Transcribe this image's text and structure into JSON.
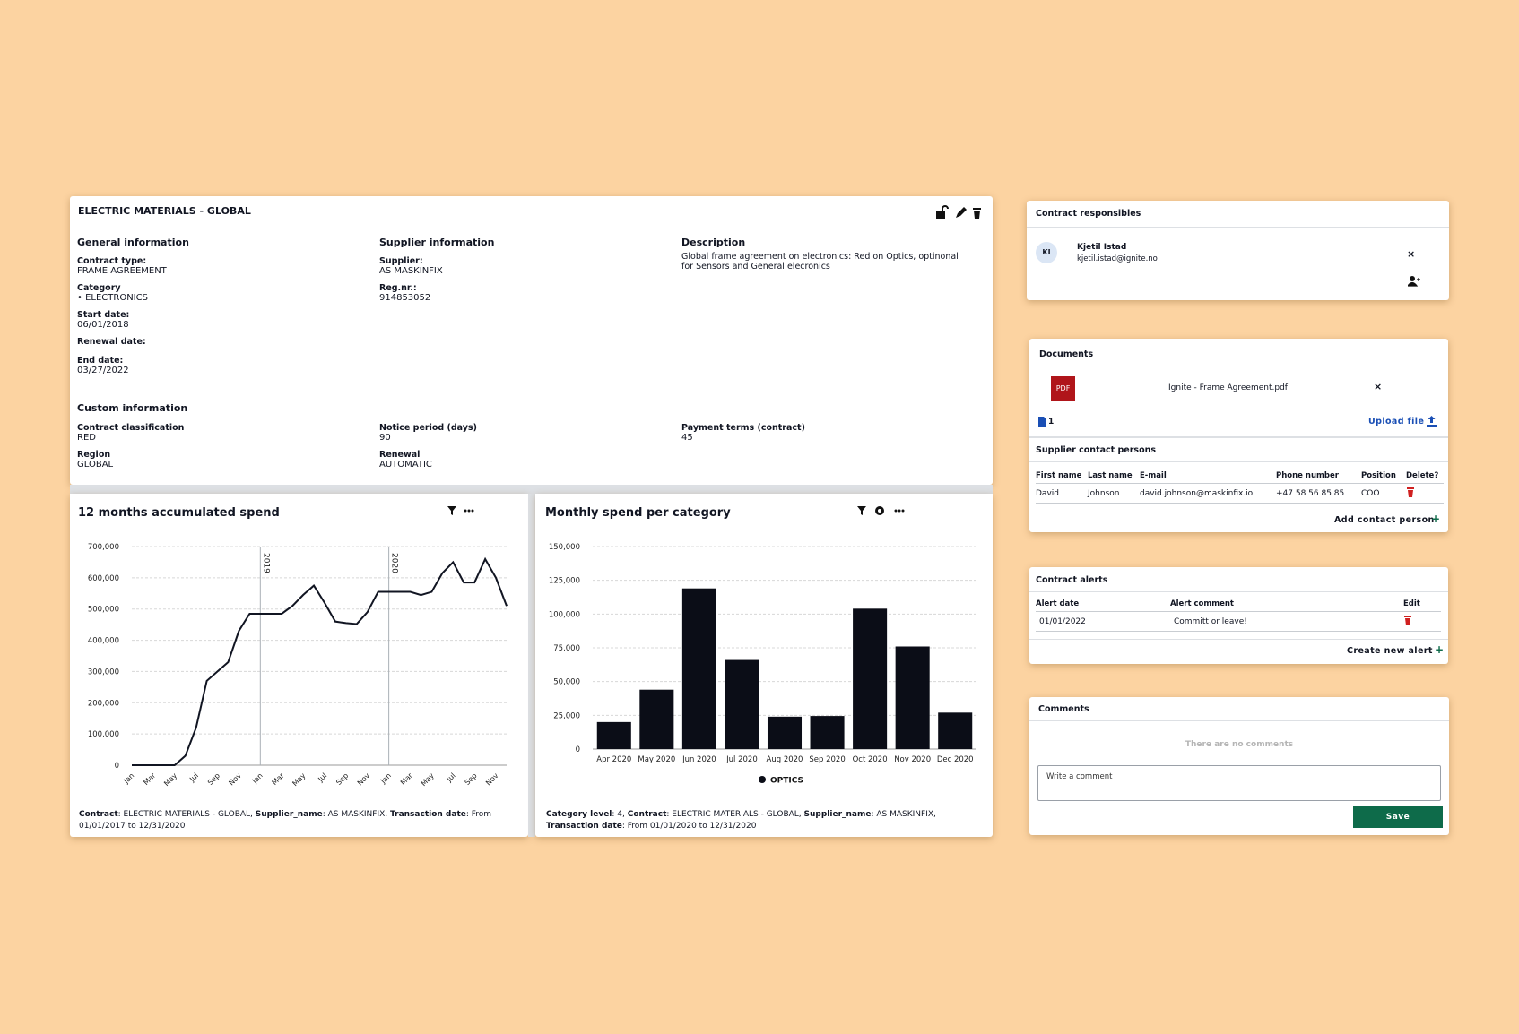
{
  "contract": {
    "title": "ELECTRIC MATERIALS - GLOBAL",
    "general": {
      "heading": "General information",
      "fields": [
        {
          "label": "Contract type:",
          "value": "FRAME AGREEMENT"
        },
        {
          "label": "Category",
          "value": "• ELECTRONICS"
        },
        {
          "label": "Start date:",
          "value": "06/01/2018"
        },
        {
          "label": "Renewal date:"
        },
        {
          "label": "End date:",
          "value": "03/27/2022"
        }
      ]
    },
    "supplier": {
      "heading": "Supplier information",
      "fields": [
        {
          "label": "Supplier:",
          "value": "AS MASKINFIX"
        },
        {
          "label": "Reg.nr.:",
          "value": "914853052"
        }
      ]
    },
    "description": {
      "heading": "Description",
      "text": "Global frame agreement on electronics: Red on Optics, optinonal for Sensors and General elecronics"
    },
    "custom": {
      "heading": "Custom information",
      "fields": [
        {
          "label": "Contract classification",
          "value": "RED"
        },
        {
          "label": "Notice period (days)",
          "value": "90"
        },
        {
          "label": "Payment terms (contract)",
          "value": "45"
        },
        {
          "label": "Region",
          "value": "GLOBAL"
        },
        {
          "label": "Renewal",
          "value": "AUTOMATIC"
        }
      ]
    }
  },
  "chart_data": [
    {
      "type": "line",
      "title": "12 months accumulated spend",
      "color": "#111522",
      "grid": true,
      "categories": [
        "Jan",
        null,
        "Mar",
        null,
        "May",
        null,
        "Jul",
        null,
        "Sep",
        null,
        "Nov",
        null,
        "Jan",
        null,
        "Mar",
        null,
        "May",
        null,
        "Jul",
        null,
        "Sep",
        null,
        "Nov",
        null,
        "Jan",
        null,
        "Mar",
        null,
        "May",
        null,
        "Jul",
        null,
        "Sep",
        null,
        "Nov",
        null
      ],
      "values": [
        0,
        0,
        0,
        0,
        0,
        30000,
        120000,
        270000,
        300000,
        330000,
        430000,
        485000,
        485000,
        485000,
        485000,
        510000,
        545000,
        575000,
        520000,
        460000,
        455000,
        452000,
        490000,
        555000,
        555000,
        555000,
        555000,
        545000,
        555000,
        615000,
        650000,
        585000,
        585000,
        660000,
        600000,
        510000
      ],
      "ylim": [
        0,
        700000
      ],
      "yticks": [
        0,
        {
          "value": 100000,
          "label": "100,000"
        },
        {
          "value": 200000,
          "label": "200,000"
        },
        {
          "value": 300000,
          "label": "300,000"
        },
        {
          "value": 400000,
          "label": "400,000"
        },
        {
          "value": 500000,
          "label": "500,000"
        },
        {
          "value": 600000,
          "label": "600,000"
        },
        {
          "value": 700000,
          "label": "700,000"
        }
      ],
      "markers": [
        {
          "index": 12,
          "label": "2019"
        },
        {
          "index": 24,
          "label": "2020"
        }
      ],
      "footnote": [
        {
          "text": "Contract",
          "bold": true
        },
        {
          "text": ": ELECTRIC MATERIALS - GLOBAL, "
        },
        {
          "text": "Supplier_name",
          "bold": true
        },
        {
          "text": ": AS MASKINFIX, "
        },
        {
          "text": "Transaction date",
          "bold": true
        },
        {
          "text": ": From 01/01/2017 to 12/31/2020"
        }
      ]
    },
    {
      "type": "bar",
      "title": "Monthly spend per category",
      "grid": true,
      "legend": "bottom",
      "categories": [
        "Apr 2020",
        "May 2020",
        "Jun 2020",
        "Jul 2020",
        "Aug 2020",
        "Sep 2020",
        "Oct 2020",
        "Nov 2020",
        "Dec 2020"
      ],
      "series": [
        {
          "name": "OPTICS",
          "color": "#0b0d17",
          "values": [
            20000,
            44000,
            119000,
            66000,
            24000,
            24500,
            104000,
            76000,
            27000
          ]
        }
      ],
      "ylim": [
        0,
        150000
      ],
      "yticks": [
        0,
        {
          "value": 25000,
          "label": "25,000"
        },
        {
          "value": 50000,
          "label": "50,000"
        },
        {
          "value": 75000,
          "label": "75,000"
        },
        {
          "value": 100000,
          "label": "100,000"
        },
        {
          "value": 125000,
          "label": "125,000"
        },
        {
          "value": 150000,
          "label": "150,000"
        }
      ],
      "footnote": [
        {
          "text": "Category level",
          "bold": true
        },
        {
          "text": ": 4, "
        },
        {
          "text": "Contract",
          "bold": true
        },
        {
          "text": ": ELECTRIC MATERIALS - GLOBAL, "
        },
        {
          "text": "Supplier_name",
          "bold": true
        },
        {
          "text": ": AS MASKINFIX, "
        },
        {
          "text": "Transaction date",
          "bold": true
        },
        {
          "text": ": From 01/01/2020 to 12/31/2020"
        }
      ]
    }
  ],
  "responsibles": {
    "title": "Contract responsibles",
    "people": [
      {
        "initials": "KI",
        "name": "Kjetil Istad",
        "email": "kjetil.istad@ignite.no"
      }
    ]
  },
  "documents": {
    "title": "Documents",
    "files": [
      {
        "type": "PDF",
        "name": "Ignite - Frame Agreement.pdf"
      }
    ],
    "count": 1,
    "upload": "Upload file"
  },
  "supplier_contacts": {
    "title": "Supplier contact persons",
    "columns": [
      "First name",
      "Last name",
      "E-mail",
      "Phone number",
      "Position",
      "Delete?"
    ],
    "rows": [
      [
        "David",
        "Johnson",
        "david.johnson@maskinfix.io",
        "+47 58 56 85 85",
        "COO"
      ]
    ],
    "add": "Add contact person"
  },
  "alerts": {
    "title": "Contract alerts",
    "columns": [
      "Alert date",
      "Alert comment",
      "Edit"
    ],
    "rows": [
      [
        "01/01/2022",
        "Committ or leave!"
      ]
    ],
    "create": "Create new alert"
  },
  "comments": {
    "title": "Comments",
    "empty": "There are no comments",
    "placeholder": "Write a comment",
    "save": "Save"
  }
}
